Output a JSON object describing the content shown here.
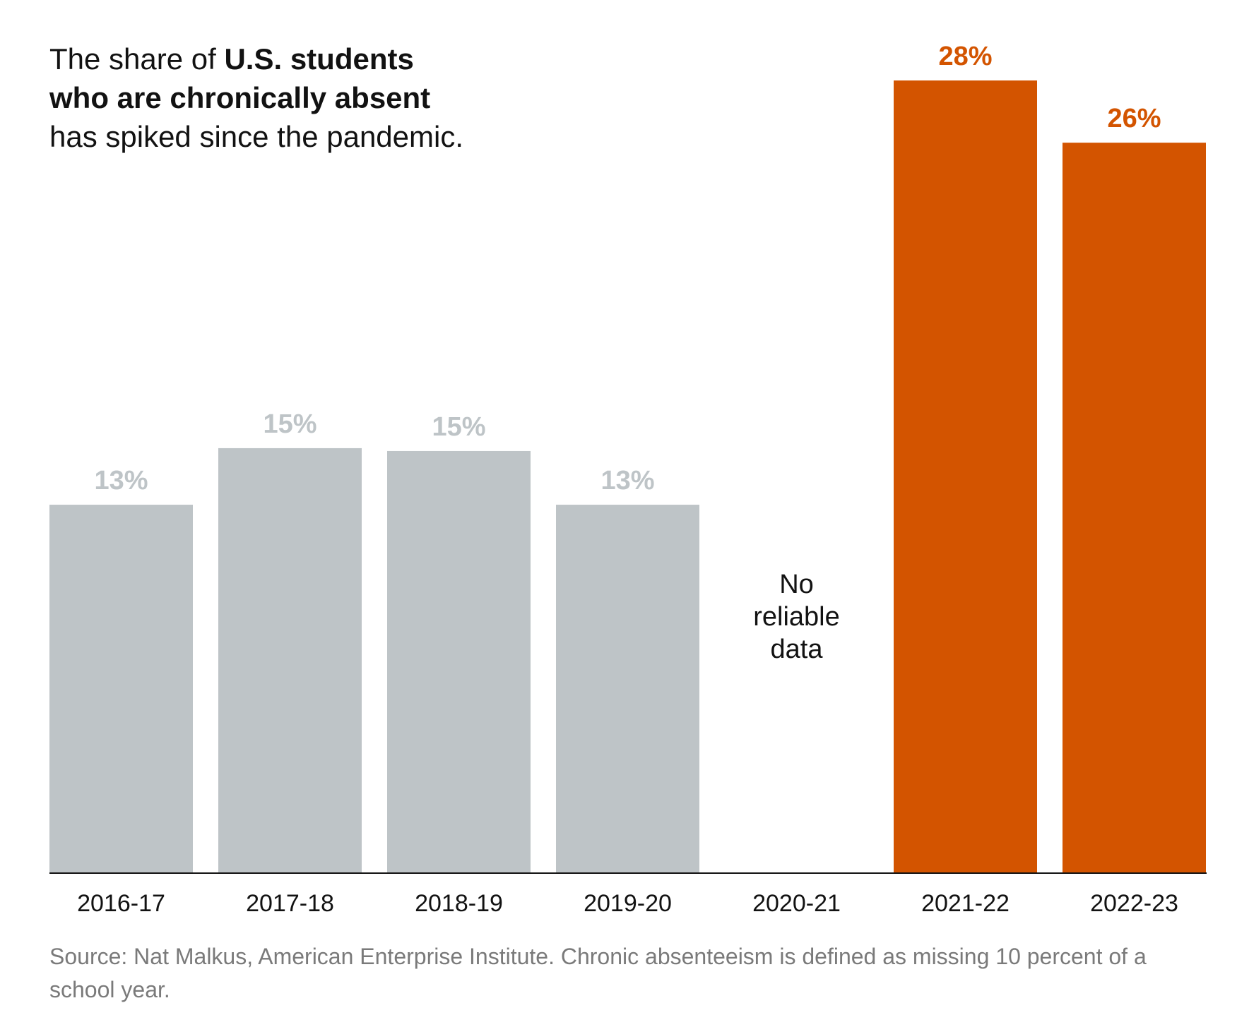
{
  "headline": {
    "part1": "The share of ",
    "bold": "U.S. students who are chronically absent",
    "part2": " has spiked since the pandemic."
  },
  "colors": {
    "pre_pandemic_bar": "#bec4c7",
    "pre_pandemic_label": "#bec4c7",
    "post_pandemic_bar": "#d35400",
    "post_pandemic_label": "#d35400",
    "axis": "#121212"
  },
  "chart_data": {
    "type": "bar",
    "title": "The share of U.S. students who are chronically absent has spiked since the pandemic.",
    "xlabel": "",
    "ylabel": "",
    "ylim": [
      0,
      28
    ],
    "grid": false,
    "categories": [
      "2016-17",
      "2017-18",
      "2018-19",
      "2019-20",
      "2020-21",
      "2021-22",
      "2022-23"
    ],
    "values": [
      13,
      15,
      14.9,
      13,
      null,
      28,
      25.8
    ],
    "value_labels": [
      "13%",
      "15%",
      "15%",
      "13%",
      "",
      "28%",
      "26%"
    ],
    "series_group": [
      "pre",
      "pre",
      "pre",
      "pre",
      "none",
      "post",
      "post"
    ],
    "annotations": [
      {
        "category": "2020-21",
        "text_lines": [
          "No",
          "reliable",
          "data"
        ]
      }
    ]
  },
  "source": "Source: Nat Malkus, American Enterprise Institute. Chronic absenteeism is defined as missing 10 percent of a school year."
}
